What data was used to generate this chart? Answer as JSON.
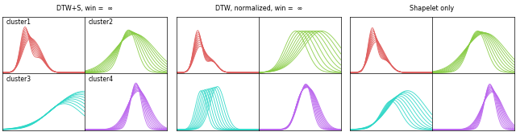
{
  "title1": "DTW+S, win =",
  "title2": "DTW, normalized, win =",
  "title3": "Shapelet only",
  "inf_symbol": "∞",
  "cluster_labels": [
    "cluster1",
    "cluster2",
    "cluster3",
    "cluster4"
  ],
  "colors": {
    "red": "#e06060",
    "green": "#88cc44",
    "cyan": "#30d8c8",
    "purple": "#bb66ee"
  },
  "background": "#ffffff",
  "lw": 0.65,
  "alpha": 0.9
}
